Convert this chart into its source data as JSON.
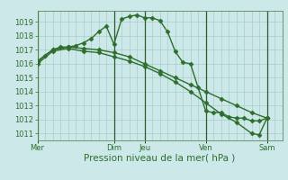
{
  "bg_color": "#cce8e8",
  "grid_color": "#aacccc",
  "line_color": "#2d6e2d",
  "vline_color": "#2d5a2d",
  "marker": "D",
  "markersize": 2.5,
  "linewidth": 1.0,
  "ylim": [
    1010.5,
    1019.8
  ],
  "yticks": [
    1011,
    1012,
    1013,
    1014,
    1015,
    1016,
    1017,
    1018,
    1019
  ],
  "xlabel": "Pression niveau de la mer( hPa )",
  "xlabel_fontsize": 7.5,
  "tick_fontsize": 6,
  "day_labels": [
    "Mer",
    "Dim",
    "Jeu",
    "Ven",
    "Sam"
  ],
  "day_positions": [
    0,
    60,
    84,
    132,
    180
  ],
  "xlim": [
    0,
    192
  ],
  "series1": {
    "x": [
      0,
      6,
      12,
      18,
      24,
      30,
      36,
      42,
      48,
      54,
      60,
      66,
      72,
      78,
      84,
      90,
      96,
      102,
      108,
      114,
      120,
      126,
      132,
      138,
      144,
      150,
      156,
      162,
      168,
      174,
      180
    ],
    "y": [
      1016.1,
      1016.6,
      1017.0,
      1017.2,
      1017.2,
      1017.3,
      1017.5,
      1017.8,
      1018.3,
      1018.7,
      1017.4,
      1019.2,
      1019.4,
      1019.5,
      1019.3,
      1019.3,
      1019.1,
      1018.3,
      1016.9,
      1016.1,
      1016.0,
      1014.3,
      1012.6,
      1012.5,
      1012.5,
      1012.2,
      1012.1,
      1012.1,
      1011.9,
      1011.9,
      1012.1
    ]
  },
  "series2": {
    "x": [
      0,
      12,
      24,
      36,
      48,
      60,
      72,
      84,
      96,
      108,
      120,
      132,
      144,
      156,
      168,
      180
    ],
    "y": [
      1016.2,
      1017.0,
      1017.2,
      1017.1,
      1017.0,
      1016.8,
      1016.5,
      1016.0,
      1015.5,
      1015.0,
      1014.5,
      1014.0,
      1013.5,
      1013.0,
      1012.5,
      1012.1
    ]
  },
  "series3": {
    "x": [
      0,
      12,
      24,
      36,
      48,
      60,
      72,
      84,
      96,
      108,
      120,
      132,
      144,
      156,
      168,
      174,
      180
    ],
    "y": [
      1016.0,
      1016.9,
      1017.1,
      1016.9,
      1016.8,
      1016.5,
      1016.2,
      1015.8,
      1015.3,
      1014.7,
      1014.0,
      1013.2,
      1012.4,
      1011.8,
      1011.0,
      1010.9,
      1012.1
    ]
  },
  "vline_positions": [
    0,
    60,
    84,
    132,
    180
  ]
}
